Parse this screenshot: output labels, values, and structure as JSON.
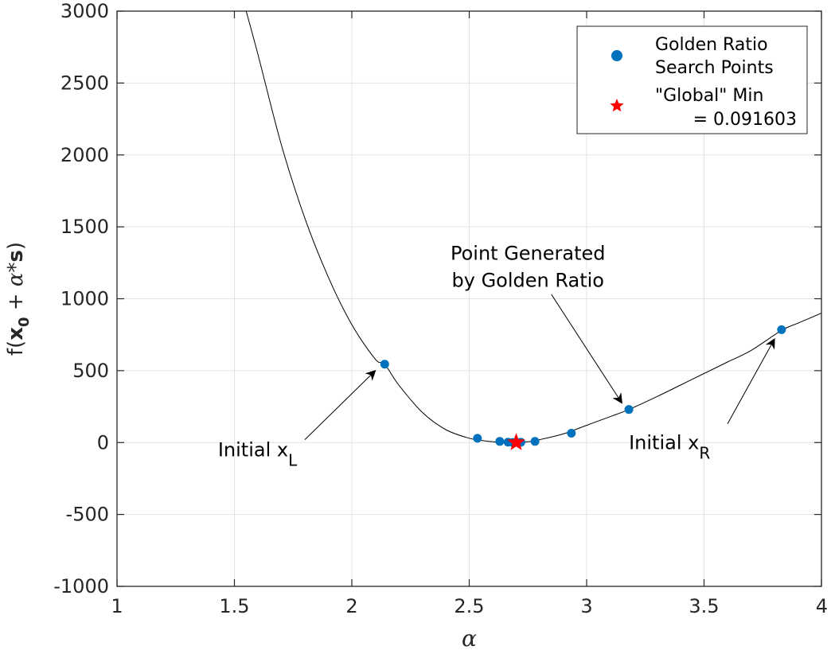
{
  "chart_data": {
    "type": "line",
    "title": "",
    "xlabel": "α",
    "ylabel": {
      "prefix": "f(",
      "bold_x": "x",
      "sub": "0",
      "middle": " + ",
      "alpha": "α",
      "star": "*",
      "bold_s": "s",
      "suffix": ")"
    },
    "xlim": [
      1,
      4
    ],
    "ylim": [
      -1000,
      3000
    ],
    "grid": true,
    "xticks": [
      1,
      1.5,
      2,
      2.5,
      3,
      3.5,
      4
    ],
    "xtick_labels": [
      "1",
      "1.5",
      "2",
      "2.5",
      "3",
      "3.5",
      "4"
    ],
    "yticks": [
      -1000,
      -500,
      0,
      500,
      1000,
      1500,
      2000,
      2500,
      3000
    ],
    "ytick_labels": [
      "-1000",
      "-500",
      "0",
      "500",
      "1000",
      "1500",
      "2000",
      "2500",
      "3000"
    ],
    "curve": {
      "x": [
        1.55,
        1.6,
        1.7,
        1.8,
        1.9,
        2.0,
        2.1,
        2.14,
        2.2,
        2.3,
        2.4,
        2.5,
        2.55,
        2.6,
        2.65,
        2.7,
        2.75,
        2.8,
        2.9,
        3.0,
        3.1,
        3.18,
        3.3,
        3.4,
        3.5,
        3.6,
        3.7,
        3.83,
        3.9,
        4.0
      ],
      "y": [
        3000,
        2700,
        2070,
        1560,
        1150,
        820,
        580,
        545,
        400,
        210,
        90,
        30,
        15,
        5,
        1,
        0,
        5,
        20,
        60,
        120,
        180,
        230,
        320,
        400,
        480,
        560,
        640,
        780,
        830,
        900
      ]
    },
    "search_points": {
      "name": "Golden Ratio Search Points",
      "x": [
        2.14,
        2.535,
        2.63,
        2.665,
        2.685,
        2.703,
        2.72,
        2.78,
        2.935,
        3.18,
        3.83
      ],
      "y": [
        545,
        30,
        8,
        3,
        1,
        0.5,
        2,
        8,
        65,
        230,
        785
      ]
    },
    "min_point": {
      "name": "\"Global\" Min = 0.091603",
      "x": 2.7,
      "y": 0.091603
    },
    "legend": {
      "placement": "top-right",
      "entries": [
        {
          "lines": [
            "Golden Ratio",
            "Search Points"
          ],
          "color": "#0072BD",
          "marker": "circle"
        },
        {
          "lines": [
            "\"Global\" Min",
            "= 0.091603"
          ],
          "color": "#FF0000",
          "marker": "star"
        }
      ]
    },
    "annotations": [
      {
        "id": "initial-xl",
        "main": "Initial x",
        "sub": "L",
        "text_x": 1.43,
        "text_y": -50,
        "arrow_from": [
          1.8,
          20
        ],
        "arrow_to": [
          2.1,
          500
        ]
      },
      {
        "id": "initial-xr",
        "main": "Initial x",
        "sub": "R",
        "text_x": 3.18,
        "text_y": 0,
        "arrow_from": [
          3.6,
          130
        ],
        "arrow_to": [
          3.8,
          720
        ]
      },
      {
        "id": "golden-ratio-point",
        "lines": [
          "Point Generated",
          "by Golden Ratio"
        ],
        "text_x": 2.75,
        "text_y": 1270,
        "arrow_from": [
          2.85,
          1030
        ],
        "arrow_to": [
          3.15,
          275
        ]
      }
    ],
    "colors": {
      "series": "#0072BD",
      "min_marker": "#FF0000",
      "curve": "#000000",
      "grid": "#e3e3e3",
      "axis": "#262626"
    }
  }
}
